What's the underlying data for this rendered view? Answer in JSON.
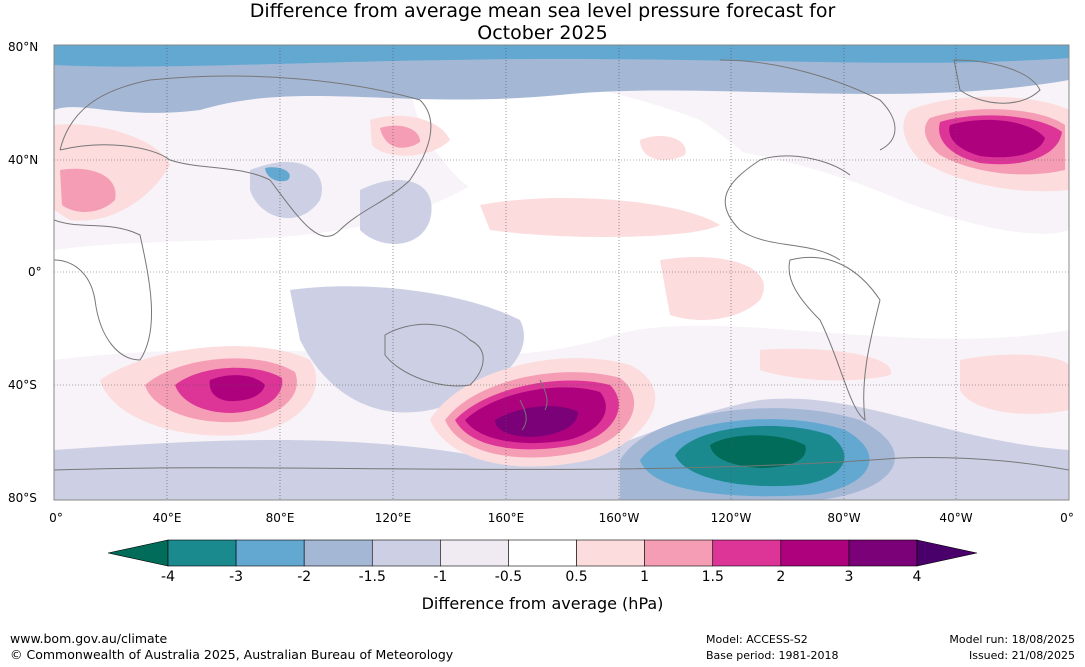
{
  "title": {
    "line1": "Difference from average mean sea level pressure forecast for",
    "line2": "October 2025"
  },
  "map": {
    "lat_labels": [
      "80°N",
      "40°N",
      "0°",
      "40°S",
      "80°S"
    ],
    "lon_labels": [
      "0°",
      "40°E",
      "80°E",
      "120°E",
      "160°E",
      "160°W",
      "120°W",
      "80°W",
      "40°W",
      "0°"
    ],
    "anomaly_features": [
      {
        "name": "north-atlantic-high",
        "lon": -25,
        "lat": 48,
        "value": 3
      },
      {
        "name": "south-indian-high",
        "lon": 65,
        "lat": -41,
        "value": 2
      },
      {
        "name": "tasman-high",
        "lon": 172,
        "lat": -51,
        "value": 4
      },
      {
        "name": "south-pacific-low",
        "lon": -112,
        "lat": -62,
        "value": -4
      }
    ]
  },
  "colorbar": {
    "title": "Difference from average (hPa)",
    "levels": [
      "-4",
      "-3",
      "-2",
      "-1.5",
      "-1",
      "-0.5",
      "0.5",
      "1",
      "1.5",
      "2",
      "3",
      "4"
    ],
    "colors": [
      "#1a8a8f",
      "#63a8d1",
      "#a4b8d6",
      "#cdd0e5",
      "#f0eaf3",
      "#ffffff",
      "#fcdcdc",
      "#f59db4",
      "#dd3497",
      "#ae017e",
      "#7a0177"
    ],
    "extend_low_color": "#016c59",
    "extend_high_color": "#49006a"
  },
  "footer": {
    "url": "www.bom.gov.au/climate",
    "copyright": "© Commonwealth of Australia 2025, Australian Bureau of Meteorology",
    "model": "Model: ACCESS-S2",
    "base_period": "Base period: 1981-2018",
    "model_run": "Model run: 18/08/2025",
    "issued": "Issued: 21/08/2025"
  }
}
